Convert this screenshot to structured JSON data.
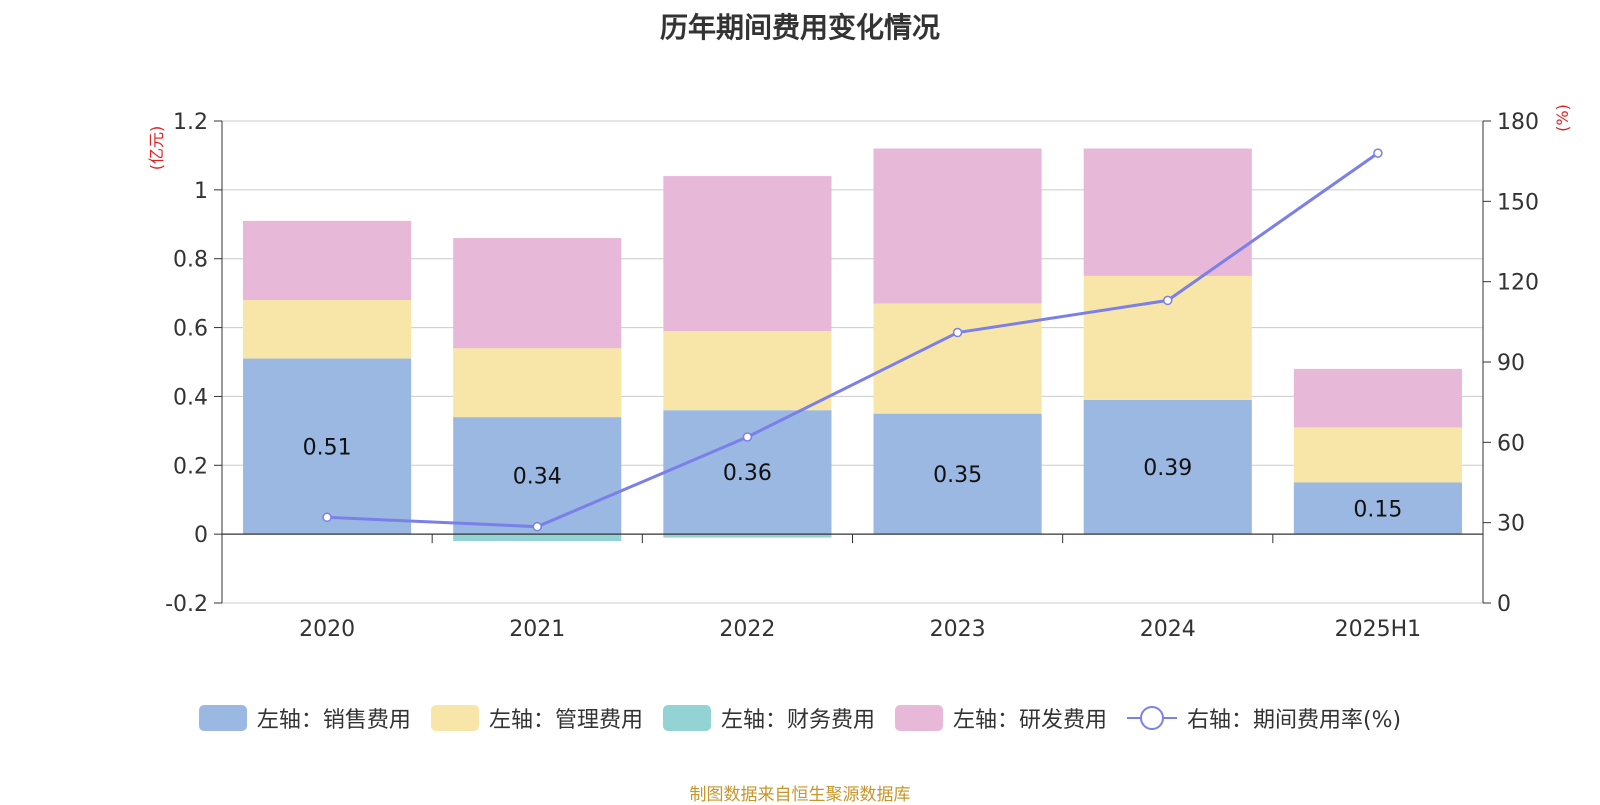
{
  "chart_data": {
    "type": "bar",
    "title": "历年期间费用变化情况",
    "categories": [
      "2020",
      "2021",
      "2022",
      "2023",
      "2024",
      "2025H1"
    ],
    "left_axis": {
      "unit_label": "(亿元)",
      "range": [
        -0.2,
        1.2
      ],
      "ticks": [
        -0.2,
        0,
        0.2,
        0.4,
        0.6,
        0.8,
        1,
        1.2
      ],
      "tick_labels": [
        "-0.2",
        "0",
        "0.2",
        "0.4",
        "0.6",
        "0.8",
        "1",
        "1.2"
      ]
    },
    "right_axis": {
      "unit_label": "(%)",
      "range": [
        0,
        180
      ],
      "ticks": [
        0,
        30,
        60,
        90,
        120,
        150,
        180
      ],
      "tick_labels": [
        "0",
        "30",
        "60",
        "90",
        "120",
        "150",
        "180"
      ]
    },
    "series": [
      {
        "name": "左轴：销售费用",
        "axis": "left",
        "kind": "bar",
        "color": "#9bb8e2",
        "values": [
          0.51,
          0.34,
          0.36,
          0.35,
          0.39,
          0.15
        ],
        "data_labels": [
          "0.51",
          "0.34",
          "0.36",
          "0.35",
          "0.39",
          "0.15"
        ]
      },
      {
        "name": "左轴：管理费用",
        "axis": "left",
        "kind": "bar",
        "color": "#f8e6a9",
        "values": [
          0.17,
          0.2,
          0.23,
          0.32,
          0.36,
          0.16
        ]
      },
      {
        "name": "左轴：财务费用",
        "axis": "left",
        "kind": "bar",
        "color": "#93d3d4",
        "values": [
          0.0,
          -0.02,
          -0.01,
          0.0,
          0.0,
          0.0
        ]
      },
      {
        "name": "左轴：研发费用",
        "axis": "left",
        "kind": "bar",
        "color": "#e8b8d9",
        "values": [
          0.23,
          0.32,
          0.45,
          0.45,
          0.37,
          0.17
        ]
      },
      {
        "name": "右轴：期间费用率(%)",
        "axis": "right",
        "kind": "line",
        "color": "#7b7fe8",
        "values": [
          32,
          28.5,
          62,
          101,
          113,
          168
        ]
      }
    ],
    "grid": true,
    "legend_position": "bottom"
  },
  "footer": "制图数据来自恒生聚源数据库"
}
